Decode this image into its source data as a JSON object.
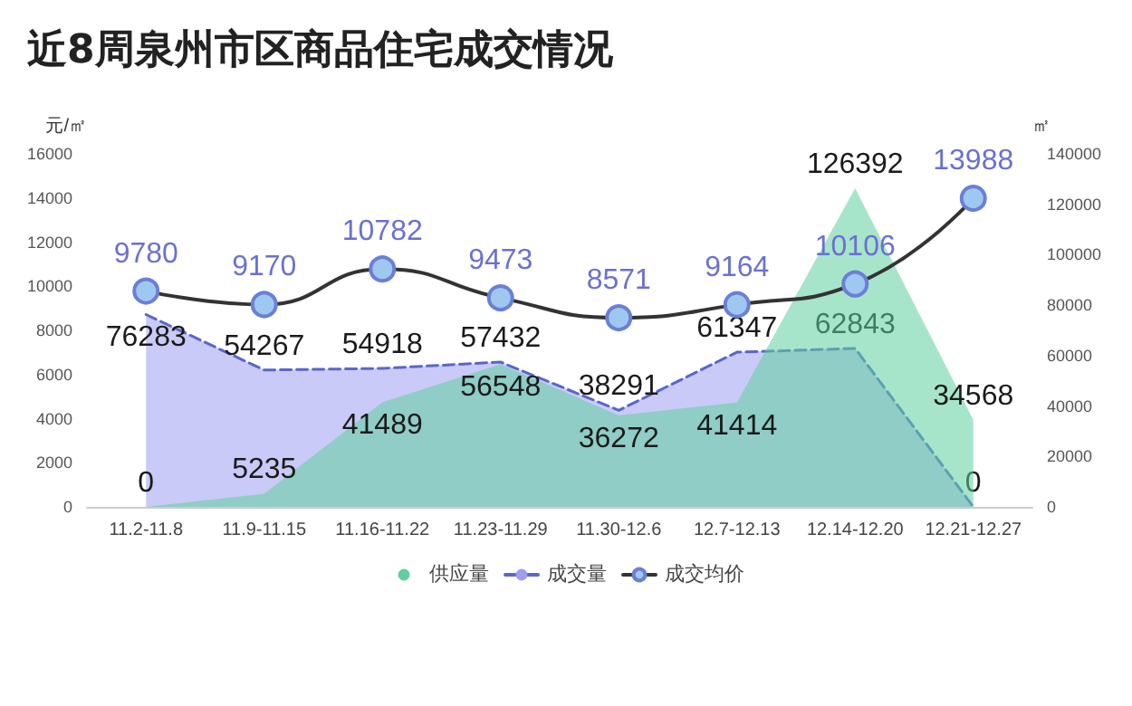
{
  "chart_data": {
    "type": "area",
    "title": "近8周泉州市区商品住宅成交情况",
    "ylabel": "元/㎡",
    "y2label": "㎡",
    "categories": [
      "11.2-11.8",
      "11.9-11.15",
      "11.16-11.22",
      "11.23-11.29",
      "11.30-12.6",
      "12.7-12.13",
      "12.14-12.20",
      "12.21-12.27"
    ],
    "series": [
      {
        "name": "供应量",
        "type": "area",
        "axis": "y2",
        "color": "#5fcf9f",
        "line_style": "solid",
        "marker": "none",
        "values": [
          0,
          5235,
          41489,
          56548,
          36272,
          41414,
          126392,
          34568
        ]
      },
      {
        "name": "成交量",
        "type": "area",
        "axis": "y2",
        "color": "#9d9ef0",
        "line_style": "dashed",
        "marker": "none",
        "values": [
          76283,
          54267,
          54918,
          57432,
          38291,
          61347,
          62843,
          0
        ]
      },
      {
        "name": "成交均价",
        "type": "line",
        "axis": "y",
        "color": "#333333",
        "line_style": "solid",
        "marker": "circle",
        "values": [
          9780,
          9170,
          10782,
          9473,
          8571,
          9164,
          10106,
          13988
        ]
      }
    ],
    "ylim": [
      0,
      16000
    ],
    "yticks": [
      0,
      2000,
      4000,
      6000,
      8000,
      10000,
      12000,
      14000,
      16000
    ],
    "y2lim": [
      0,
      140000
    ],
    "y2ticks": [
      0,
      20000,
      40000,
      60000,
      80000,
      100000,
      120000,
      140000
    ],
    "data_labels": true,
    "grid": false,
    "legend": "bottom"
  }
}
